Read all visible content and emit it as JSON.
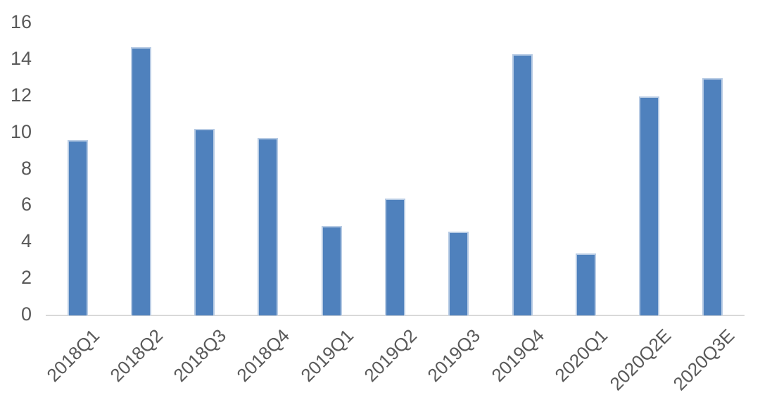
{
  "chart_data": {
    "type": "bar",
    "title": "",
    "xlabel": "",
    "ylabel": "",
    "categories": [
      "2018Q1",
      "2018Q2",
      "2018Q3",
      "2018Q4",
      "2019Q1",
      "2019Q2",
      "2019Q3",
      "2019Q4",
      "2020Q1",
      "2020Q2E",
      "2020Q3E"
    ],
    "values": [
      9.6,
      14.7,
      10.2,
      9.7,
      4.9,
      6.4,
      4.6,
      14.3,
      3.4,
      12.0,
      13.0
    ],
    "ylim": [
      0,
      16
    ],
    "yticks": [
      0,
      2,
      4,
      6,
      8,
      10,
      12,
      14,
      16
    ],
    "grid": false,
    "legend_position": "none",
    "bar_color": "#4F81BD",
    "bar_border_color": "#B7CBE4",
    "axis_line_color": "#D9D9D9",
    "tick_label_color": "#595959",
    "background_color": "#FFFFFF"
  }
}
